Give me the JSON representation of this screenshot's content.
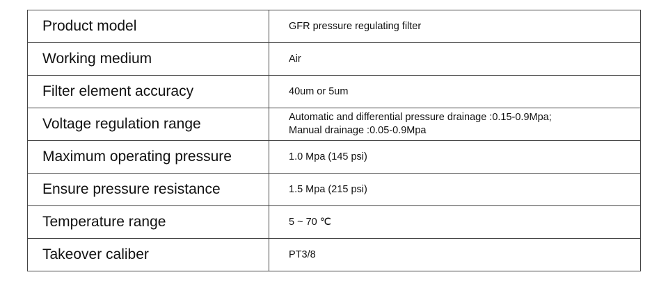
{
  "rows": [
    {
      "label": "Product model",
      "value": [
        "GFR pressure regulating filter"
      ]
    },
    {
      "label": "Working medium",
      "value": [
        "Air"
      ]
    },
    {
      "label": "Filter element accuracy",
      "value": [
        "40um or 5um"
      ]
    },
    {
      "label": "Voltage regulation range",
      "value": [
        "Automatic and differential pressure drainage :0.15-0.9Mpa;",
        "Manual drainage :0.05-0.9Mpa"
      ]
    },
    {
      "label": "Maximum operating pressure",
      "value": [
        "1.0 Mpa (145 psi)"
      ]
    },
    {
      "label": "Ensure pressure resistance",
      "value": [
        "1.5 Mpa (215 psi)"
      ]
    },
    {
      "label": "Temperature range",
      "value": [
        "5 ~ 70 ℃"
      ]
    },
    {
      "label": "Takeover caliber",
      "value": [
        "PT3/8"
      ]
    }
  ]
}
